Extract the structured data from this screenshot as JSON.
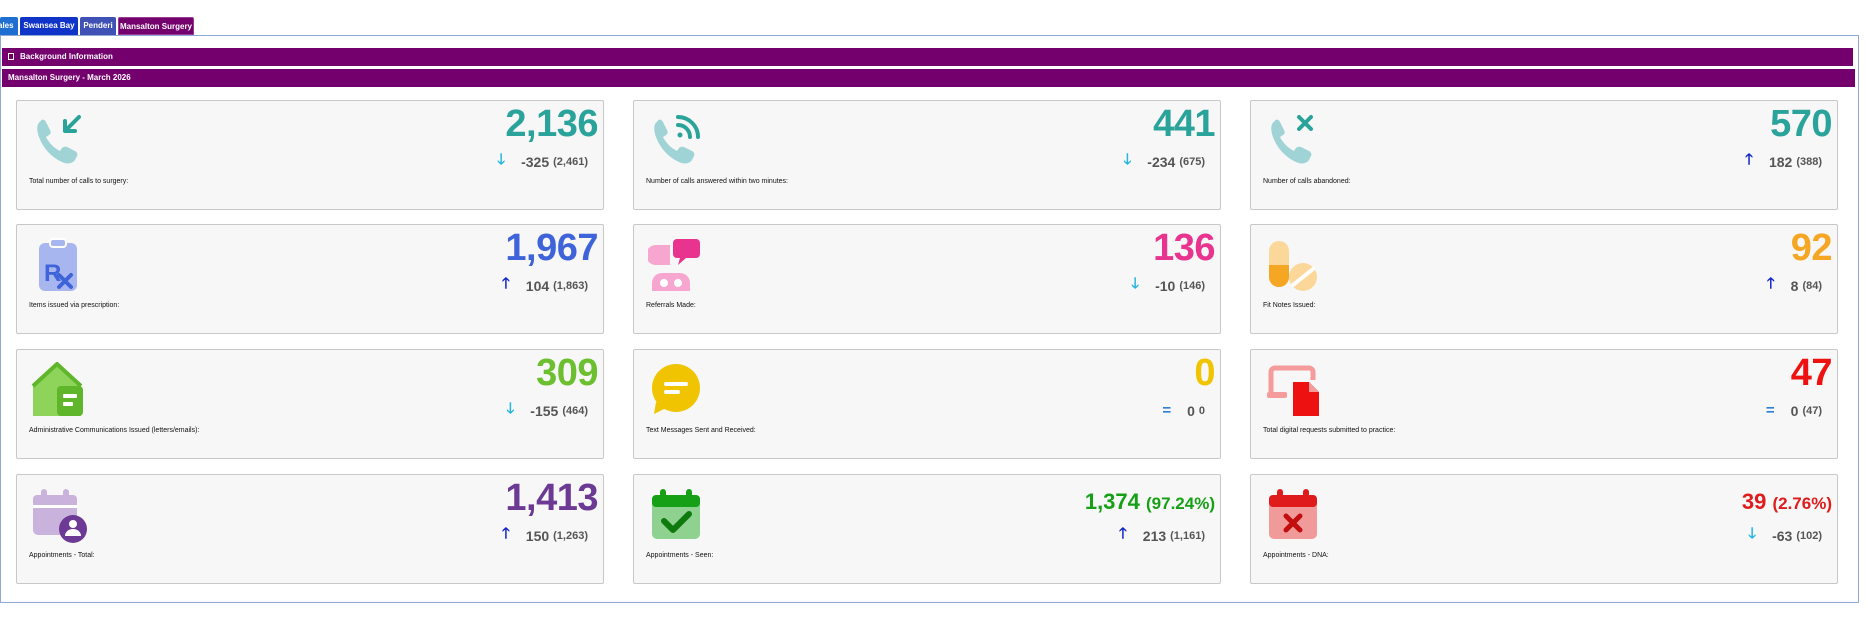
{
  "tabs": [
    {
      "label": "ales"
    },
    {
      "label": "Swansea Bay"
    },
    {
      "label": "Penderi"
    },
    {
      "label": "Mansalton Surgery"
    }
  ],
  "sections": {
    "background_label": "Background Information",
    "title": "Mansalton Surgery - March 2026"
  },
  "cards": [
    {
      "value": "2,136",
      "change": "-325",
      "prev": "(2,461)",
      "direction": "down",
      "label": "Total number of calls to surgery:",
      "icon": "phone-incoming-icon",
      "color": "#2aa39b"
    },
    {
      "value": "441",
      "change": "-234",
      "prev": "(675)",
      "direction": "down",
      "label": "Number of calls answered within two minutes:",
      "icon": "phone-answered-icon",
      "color": "#2aa39b"
    },
    {
      "value": "570",
      "change": "182",
      "prev": "(388)",
      "direction": "up",
      "label": "Number of calls abandoned:",
      "icon": "phone-missed-icon",
      "color": "#2aa39b"
    },
    {
      "value": "1,967",
      "change": "104",
      "prev": "(1,863)",
      "direction": "up",
      "label": "Items issued via prescription:",
      "icon": "prescription-icon",
      "color": "#3f63d8"
    },
    {
      "value": "136",
      "change": "-10",
      "prev": "(146)",
      "direction": "down",
      "label": "Referrals Made:",
      "icon": "referral-icon",
      "color": "#e8338f"
    },
    {
      "value": "92",
      "change": "8",
      "prev": "(84)",
      "direction": "up",
      "label": "Fit Notes Issued:",
      "icon": "pills-icon",
      "color": "#f5a623"
    },
    {
      "value": "309",
      "change": "-155",
      "prev": "(464)",
      "direction": "down",
      "label": "Administrative Communications Issued (letters/emails):",
      "icon": "letter-icon",
      "color": "#6cbf2f"
    },
    {
      "value": "0",
      "change": "0",
      "prev": "0",
      "direction": "equal",
      "label": "Text Messages Sent and Received:",
      "icon": "message-icon",
      "color": "#f0c400"
    },
    {
      "value": "47",
      "change": "0",
      "prev": "(47)",
      "direction": "equal",
      "label": "Total digital requests submitted to practice:",
      "icon": "digital-request-icon",
      "color": "#ee1111"
    },
    {
      "value": "1,413",
      "change": "150",
      "prev": "(1,263)",
      "direction": "up",
      "label": "Appointments - Total:",
      "icon": "calendar-user-icon",
      "color": "#6c3a94"
    },
    {
      "value": "1,374",
      "pct": "(97.24%)",
      "change": "213",
      "prev": "(1,161)",
      "direction": "up",
      "label": "Appointments - Seen:",
      "icon": "calendar-check-icon",
      "color": "#16a016"
    },
    {
      "value": "39",
      "pct": "(2.76%)",
      "change": "-63",
      "prev": "(102)",
      "direction": "down",
      "label": "Appointments - DNA:",
      "icon": "calendar-x-icon",
      "color": "#e01b1b"
    }
  ],
  "arrows": {
    "up": "🡑",
    "down": "🡓",
    "equal": "="
  }
}
